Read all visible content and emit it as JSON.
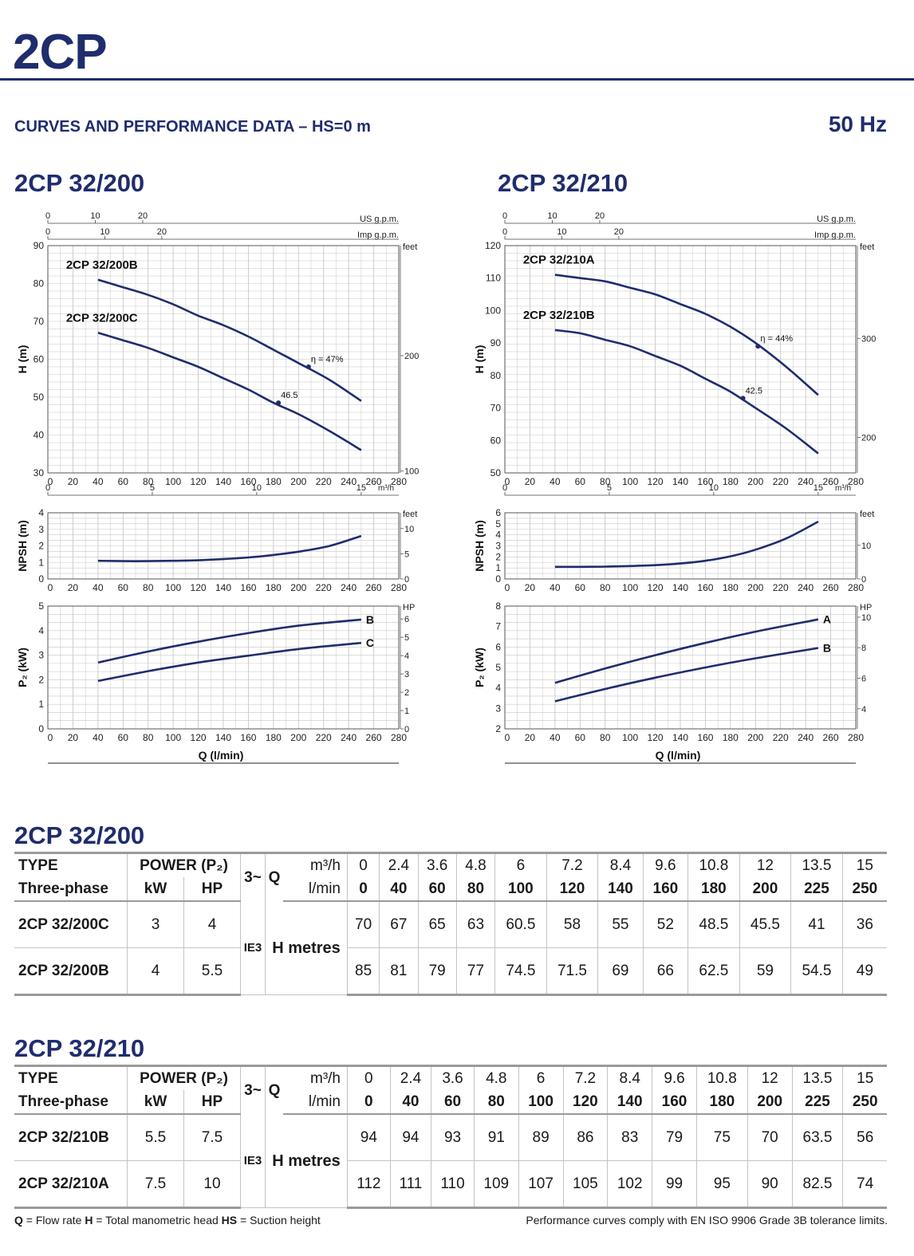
{
  "header": {
    "brand": "2CP",
    "subtitle": "CURVES AND PERFORMANCE DATA  –  HS=0 m",
    "frequency": "50 Hz"
  },
  "colors": {
    "brand": "#1f2d6e",
    "curve": "#1f2d6e",
    "grid": "#c8c8c8"
  },
  "axis_text": {
    "us_gpm": "US g.p.m.",
    "imp_gpm": "Imp g.p.m.",
    "m3h": "m³/h",
    "feet": "feet",
    "hp": "HP",
    "h_label": "H (m)",
    "npsh_label": "NPSH (m)",
    "p2_label": "P₂ (kW)",
    "q_label": "Q (l/min)"
  },
  "chart_titles": [
    "2CP 32/200",
    "2CP 32/210"
  ],
  "chart_data": [
    {
      "type": "line",
      "title": "2CP 32/200",
      "panels": {
        "head": {
          "ylabel": "H (m)",
          "xlabel": "Q (l/min)",
          "xlim": [
            0,
            280
          ],
          "ylim": [
            30,
            90
          ],
          "x_ticks": [
            0,
            20,
            40,
            60,
            80,
            100,
            120,
            140,
            160,
            180,
            200,
            220,
            240,
            260,
            280
          ],
          "y_ticks": [
            30,
            40,
            50,
            60,
            70,
            80,
            90
          ],
          "right_axis": {
            "unit": "feet",
            "ticks": [
              100,
              200
            ]
          },
          "top_axes": [
            {
              "unit": "US g.p.m.",
              "ticks": [
                0,
                10,
                20
              ]
            },
            {
              "unit": "Imp g.p.m.",
              "ticks": [
                0,
                10,
                20
              ]
            }
          ],
          "m3h_axis": {
            "unit": "m³/h",
            "ticks": [
              0,
              5,
              10,
              15
            ]
          },
          "grid": true,
          "series": [
            {
              "name": "2CP 32/200B",
              "x": [
                40,
                60,
                80,
                100,
                120,
                140,
                160,
                180,
                200,
                225,
                250
              ],
              "y": [
                81,
                79,
                77,
                74.5,
                71.5,
                69,
                66,
                62.5,
                59,
                54.5,
                49
              ]
            },
            {
              "name": "2CP 32/200C",
              "x": [
                40,
                60,
                80,
                100,
                120,
                140,
                160,
                180,
                200,
                225,
                250
              ],
              "y": [
                67,
                65,
                63,
                60.5,
                58,
                55,
                52,
                48.5,
                45.5,
                41,
                36
              ]
            }
          ],
          "annotations": [
            {
              "text": "η = 47%",
              "x": 208,
              "y": 58
            },
            {
              "text": "46.5",
              "x": 184,
              "y": 48.5
            }
          ]
        },
        "npsh": {
          "ylabel": "NPSH (m)",
          "xlim": [
            0,
            280
          ],
          "ylim": [
            0,
            4
          ],
          "x_ticks": [
            0,
            20,
            40,
            60,
            80,
            100,
            120,
            140,
            160,
            180,
            200,
            220,
            240,
            260,
            280
          ],
          "y_ticks": [
            0,
            1,
            2,
            3,
            4
          ],
          "right_axis": {
            "unit": "feet",
            "ticks": [
              0,
              5,
              10
            ]
          },
          "series": [
            {
              "x": [
                40,
                60,
                80,
                100,
                120,
                140,
                160,
                180,
                200,
                225,
                250
              ],
              "y": [
                1.1,
                1.08,
                1.08,
                1.1,
                1.13,
                1.2,
                1.3,
                1.45,
                1.65,
                2.0,
                2.6
              ]
            }
          ]
        },
        "power": {
          "ylabel": "P₂ (kW)",
          "xlabel": "Q (l/min)",
          "xlim": [
            0,
            280
          ],
          "ylim": [
            0,
            5
          ],
          "x_ticks": [
            0,
            20,
            40,
            60,
            80,
            100,
            120,
            140,
            160,
            180,
            200,
            220,
            240,
            260,
            280
          ],
          "y_ticks": [
            0,
            1,
            2,
            3,
            4,
            5
          ],
          "right_axis": {
            "unit": "HP",
            "ticks": [
              0,
              1,
              2,
              3,
              4,
              5,
              6
            ]
          },
          "series": [
            {
              "name": "B",
              "x": [
                40,
                80,
                120,
                160,
                200,
                250
              ],
              "y": [
                2.7,
                3.15,
                3.55,
                3.9,
                4.2,
                4.45
              ]
            },
            {
              "name": "C",
              "x": [
                40,
                80,
                120,
                160,
                200,
                250
              ],
              "y": [
                1.95,
                2.35,
                2.7,
                2.98,
                3.25,
                3.5
              ]
            }
          ]
        }
      }
    },
    {
      "type": "line",
      "title": "2CP 32/210",
      "panels": {
        "head": {
          "ylabel": "H (m)",
          "xlabel": "Q (l/min)",
          "xlim": [
            0,
            280
          ],
          "ylim": [
            50,
            120
          ],
          "x_ticks": [
            0,
            20,
            40,
            60,
            80,
            100,
            120,
            140,
            160,
            180,
            200,
            220,
            240,
            260,
            280
          ],
          "y_ticks": [
            50,
            60,
            70,
            80,
            90,
            100,
            110,
            120
          ],
          "right_axis": {
            "unit": "feet",
            "ticks": [
              200,
              300
            ]
          },
          "top_axes": [
            {
              "unit": "US g.p.m.",
              "ticks": [
                0,
                10,
                20
              ]
            },
            {
              "unit": "Imp g.p.m.",
              "ticks": [
                0,
                10,
                20
              ]
            }
          ],
          "m3h_axis": {
            "unit": "m³/h",
            "ticks": [
              0,
              5,
              10,
              15
            ]
          },
          "grid": true,
          "series": [
            {
              "name": "2CP 32/210A",
              "x": [
                40,
                60,
                80,
                100,
                120,
                140,
                160,
                180,
                200,
                225,
                250
              ],
              "y": [
                111,
                110,
                109,
                107,
                105,
                102,
                99,
                95,
                90,
                82.5,
                74
              ]
            },
            {
              "name": "2CP 32/210B",
              "x": [
                40,
                60,
                80,
                100,
                120,
                140,
                160,
                180,
                200,
                225,
                250
              ],
              "y": [
                94,
                93,
                91,
                89,
                86,
                83,
                79,
                75,
                70,
                63.5,
                56
              ]
            }
          ],
          "annotations": [
            {
              "text": "η = 44%",
              "x": 202,
              "y": 89
            },
            {
              "text": "42.5",
              "x": 190,
              "y": 73
            }
          ]
        },
        "npsh": {
          "ylabel": "NPSH (m)",
          "xlim": [
            0,
            280
          ],
          "ylim": [
            0,
            6
          ],
          "x_ticks": [
            0,
            20,
            40,
            60,
            80,
            100,
            120,
            140,
            160,
            180,
            200,
            220,
            240,
            260,
            280
          ],
          "y_ticks": [
            0,
            1,
            2,
            3,
            4,
            5,
            6
          ],
          "right_axis": {
            "unit": "feet",
            "ticks": [
              0,
              10
            ]
          },
          "series": [
            {
              "x": [
                40,
                60,
                80,
                100,
                120,
                140,
                160,
                180,
                200,
                225,
                250
              ],
              "y": [
                1.1,
                1.1,
                1.12,
                1.17,
                1.25,
                1.4,
                1.65,
                2.05,
                2.65,
                3.7,
                5.2
              ]
            }
          ]
        },
        "power": {
          "ylabel": "P₂ (kW)",
          "xlabel": "Q (l/min)",
          "xlim": [
            0,
            280
          ],
          "ylim": [
            2,
            8
          ],
          "x_ticks": [
            0,
            20,
            40,
            60,
            80,
            100,
            120,
            140,
            160,
            180,
            200,
            220,
            240,
            260,
            280
          ],
          "y_ticks": [
            2,
            3,
            4,
            5,
            6,
            7,
            8
          ],
          "right_axis": {
            "unit": "HP",
            "ticks": [
              4,
              6,
              8,
              10
            ]
          },
          "series": [
            {
              "name": "A",
              "x": [
                40,
                80,
                120,
                160,
                200,
                250
              ],
              "y": [
                4.25,
                4.95,
                5.6,
                6.2,
                6.75,
                7.35
              ]
            },
            {
              "name": "B",
              "x": [
                40,
                80,
                120,
                160,
                200,
                250
              ],
              "y": [
                3.35,
                3.95,
                4.5,
                5.0,
                5.45,
                5.95
              ]
            }
          ]
        }
      }
    }
  ],
  "tables": [
    {
      "title": "2CP 32/200",
      "h_type": "TYPE",
      "h_phase": "Three-phase",
      "h_power": "POWER (P₂)",
      "h_kw": "kW",
      "h_hp": "HP",
      "h_3ph": "3~",
      "h_q": "Q",
      "h_m3h": "m³/h",
      "h_lmin": "l/min",
      "h_ie": "IE3",
      "h_metres": "H metres",
      "m3h": [
        "0",
        "2.4",
        "3.6",
        "4.8",
        "6",
        "7.2",
        "8.4",
        "9.6",
        "10.8",
        "12",
        "13.5",
        "15"
      ],
      "lmin": [
        "0",
        "40",
        "60",
        "80",
        "100",
        "120",
        "140",
        "160",
        "180",
        "200",
        "225",
        "250"
      ],
      "rows": [
        {
          "type": "2CP 32/200C",
          "kw": "3",
          "hp": "4",
          "h": [
            "70",
            "67",
            "65",
            "63",
            "60.5",
            "58",
            "55",
            "52",
            "48.5",
            "45.5",
            "41",
            "36"
          ]
        },
        {
          "type": "2CP 32/200B",
          "kw": "4",
          "hp": "5.5",
          "h": [
            "85",
            "81",
            "79",
            "77",
            "74.5",
            "71.5",
            "69",
            "66",
            "62.5",
            "59",
            "54.5",
            "49"
          ]
        }
      ]
    },
    {
      "title": "2CP 32/210",
      "h_type": "TYPE",
      "h_phase": "Three-phase",
      "h_power": "POWER (P₂)",
      "h_kw": "kW",
      "h_hp": "HP",
      "h_3ph": "3~",
      "h_q": "Q",
      "h_m3h": "m³/h",
      "h_lmin": "l/min",
      "h_ie": "IE3",
      "h_metres": "H metres",
      "m3h": [
        "0",
        "2.4",
        "3.6",
        "4.8",
        "6",
        "7.2",
        "8.4",
        "9.6",
        "10.8",
        "12",
        "13.5",
        "15"
      ],
      "lmin": [
        "0",
        "40",
        "60",
        "80",
        "100",
        "120",
        "140",
        "160",
        "180",
        "200",
        "225",
        "250"
      ],
      "rows": [
        {
          "type": "2CP 32/210B",
          "kw": "5.5",
          "hp": "7.5",
          "h": [
            "94",
            "94",
            "93",
            "91",
            "89",
            "86",
            "83",
            "79",
            "75",
            "70",
            "63.5",
            "56"
          ]
        },
        {
          "type": "2CP 32/210A",
          "kw": "7.5",
          "hp": "10",
          "h": [
            "112",
            "111",
            "110",
            "109",
            "107",
            "105",
            "102",
            "99",
            "95",
            "90",
            "82.5",
            "74"
          ]
        }
      ]
    }
  ],
  "footer": {
    "q_key": "Q",
    "q_text": " = Flow rate  ",
    "h_key": "H",
    "h_text": " = Total manometric head  ",
    "hs_key": "HS",
    "hs_text": " = Suction height",
    "compliance": "Performance curves comply with EN ISO 9906 Grade 3B tolerance limits."
  }
}
